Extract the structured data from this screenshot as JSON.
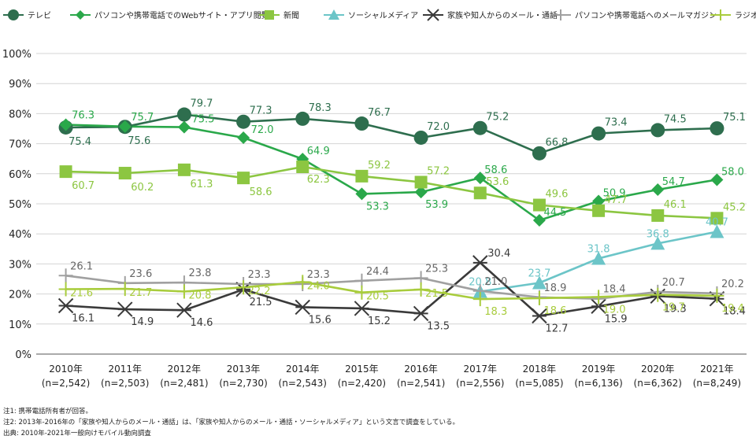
{
  "chart_data": {
    "type": "line",
    "categories": [
      "2010年",
      "2011年",
      "2012年",
      "2013年",
      "2014年",
      "2015年",
      "2016年",
      "2017年",
      "2018年",
      "2019年",
      "2020年",
      "2021年"
    ],
    "sample_sizes": [
      "(n=2,542)",
      "(n=2,503)",
      "(n=2,481)",
      "(n=2,730)",
      "(n=2,543)",
      "(n=2,420)",
      "(n=2,541)",
      "(n=2,556)",
      "(n=5,085)",
      "(n=6,136)",
      "(n=6,362)",
      "(n=8,249)"
    ],
    "ylim": [
      0,
      100
    ],
    "yticks": [
      "0%",
      "10%",
      "20%",
      "30%",
      "40%",
      "50%",
      "60%",
      "70%",
      "80%",
      "90%",
      "100%"
    ],
    "grid": true,
    "legend_position": "top",
    "series": [
      {
        "name": "テレビ",
        "marker": "circle",
        "color": "#2e6e4e",
        "values": [
          75.4,
          75.6,
          79.7,
          77.3,
          78.3,
          76.7,
          72.0,
          75.2,
          66.8,
          73.4,
          74.5,
          75.1
        ],
        "labels": [
          "75.4",
          "75.6",
          "79.7",
          "77.3",
          "78.3",
          "76.7",
          "72.0",
          "75.2",
          "66.8",
          "73.4",
          "74.5",
          "75.1"
        ]
      },
      {
        "name": "パソコンや携帯電話でのWebサイト・アプリ閲覧",
        "marker": "diamond",
        "color": "#2aa84a",
        "values": [
          76.3,
          75.7,
          75.5,
          72.0,
          64.9,
          53.3,
          53.9,
          58.6,
          44.5,
          50.9,
          54.7,
          58.0
        ],
        "labels": [
          "76.3",
          "75.7",
          "75.5",
          "72.0",
          "64.9",
          "53.3",
          "53.9",
          "58.6",
          "44.5",
          "50.9",
          "54.7",
          "58.0"
        ]
      },
      {
        "name": "新聞",
        "marker": "square",
        "color": "#8cc641",
        "values": [
          60.7,
          60.2,
          61.3,
          58.6,
          62.3,
          59.2,
          57.2,
          53.6,
          49.6,
          47.7,
          46.1,
          45.2
        ],
        "labels": [
          "60.7",
          "60.2",
          "61.3",
          "58.6",
          "62.3",
          "59.2",
          "57.2",
          "53.6",
          "49.6",
          "47.7",
          "46.1",
          "45.2"
        ]
      },
      {
        "name": "ソーシャルメディア",
        "marker": "triangle",
        "color": "#6cc5c8",
        "values": [
          null,
          null,
          null,
          null,
          null,
          null,
          null,
          20.8,
          23.7,
          31.8,
          36.8,
          40.7
        ],
        "labels": [
          "",
          "",
          "",
          "",
          "",
          "",
          "",
          "20.8",
          "23.7",
          "31.8",
          "36.8",
          "40.7"
        ]
      },
      {
        "name": "家族や知人からのメール・通話",
        "marker": "asterisk",
        "color": "#3a3a3a",
        "values": [
          16.1,
          14.9,
          14.6,
          21.5,
          15.6,
          15.2,
          13.5,
          30.4,
          12.7,
          15.9,
          19.3,
          18.4
        ],
        "labels": [
          "16.1",
          "14.9",
          "14.6",
          "21.5",
          "15.6",
          "15.2",
          "13.5",
          "30.4",
          "12.7",
          "15.9",
          "19.3",
          "18.4"
        ]
      },
      {
        "name": "パソコンや携帯電話へのメールマガジン",
        "marker": "plus",
        "color": "#a0a0a0",
        "values": [
          26.1,
          23.6,
          23.8,
          23.3,
          23.3,
          24.4,
          25.3,
          21.0,
          18.9,
          18.4,
          20.7,
          20.2
        ],
        "labels": [
          "26.1",
          "23.6",
          "23.8",
          "23.3",
          "23.3",
          "24.4",
          "25.3",
          "21.0",
          "18.9",
          "18.4",
          "20.7",
          "20.2"
        ]
      },
      {
        "name": "ラジオ",
        "marker": "plus",
        "color": "#a8cc3c",
        "values": [
          21.6,
          21.7,
          20.8,
          22.2,
          24.0,
          20.5,
          21.5,
          18.3,
          18.6,
          19.0,
          19.7,
          19.4
        ],
        "labels": [
          "21.6",
          "21.7",
          "20.8",
          "22.2",
          "24.0",
          "20.5",
          "21.5",
          "18.3",
          "18.6",
          "19.0",
          "19.7",
          "19.4"
        ]
      }
    ]
  },
  "notes": [
    "注1: 携帯電話所有者が回答。",
    "注2: 2013年-2016年の「家族や知人からのメール・通話」は、「家族や知人からのメール・通話・ソーシャルメディア」という文言で調査をしている。",
    "出典: 2010年-2021年一般向けモバイル動向調査"
  ]
}
